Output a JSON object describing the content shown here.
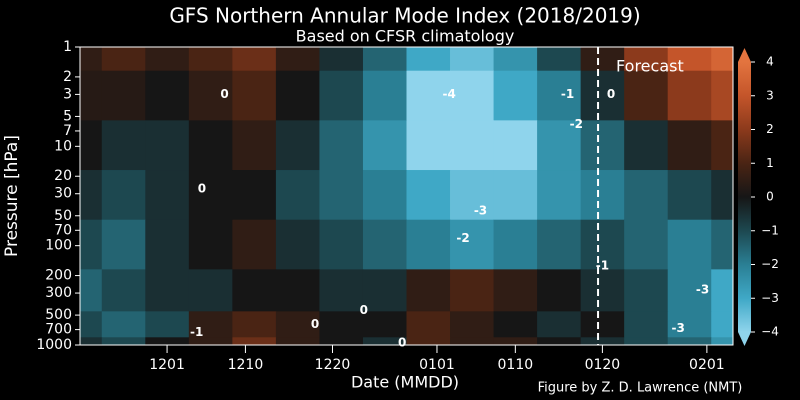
{
  "chart_data": {
    "type": "contour",
    "title": "GFS Northern Annular Mode Index (2018/2019)",
    "subtitle": "Based on CFSR climatology",
    "xlabel": "Date (MMDD)",
    "ylabel": "Pressure [hPa]",
    "credit": "Figure by Z. D. Lawrence (NMT)",
    "xlim": [
      0,
      75
    ],
    "xticks": [
      {
        "value": 10,
        "label": "1201"
      },
      {
        "value": 19,
        "label": "1210"
      },
      {
        "value": 29,
        "label": "1220"
      },
      {
        "value": 41,
        "label": "0101"
      },
      {
        "value": 50,
        "label": "0110"
      },
      {
        "value": 60,
        "label": "0120"
      },
      {
        "value": 72,
        "label": "0201"
      }
    ],
    "ylim": [
      1000,
      1
    ],
    "ylog": true,
    "yticks": [
      1,
      2,
      3,
      5,
      7,
      10,
      20,
      30,
      50,
      70,
      100,
      200,
      300,
      500,
      700,
      1000
    ],
    "x": [
      0,
      5,
      10,
      15,
      20,
      25,
      30,
      35,
      40,
      45,
      50,
      55,
      60,
      65,
      70,
      75
    ],
    "levels": [
      1,
      3,
      10,
      30,
      100,
      300,
      700,
      1000
    ],
    "z": [
      [
        0.5,
        1,
        0.5,
        1,
        1.5,
        0.5,
        -0.5,
        -1.5,
        -3,
        -3.5,
        -2.5,
        -1,
        0.5,
        2,
        3,
        3.5
      ],
      [
        0.3,
        0.3,
        0,
        0.5,
        1,
        0,
        -1,
        -2,
        -4,
        -4,
        -3,
        -2,
        -0.5,
        1,
        2,
        2.5
      ],
      [
        0,
        -0.5,
        -0.5,
        0,
        0.5,
        -0.5,
        -1.5,
        -2.5,
        -4,
        -4.5,
        -4,
        -2.5,
        -1.5,
        -0.5,
        0.5,
        1
      ],
      [
        -0.5,
        -1,
        -0.5,
        0,
        0,
        -1,
        -1.5,
        -2,
        -3,
        -3.5,
        -3.5,
        -2.5,
        -2,
        -1.5,
        -1,
        -0.5
      ],
      [
        -1,
        -1.5,
        -0.5,
        0,
        0.5,
        -0.5,
        -1,
        -1.5,
        -2,
        -2.5,
        -2,
        -1.5,
        -1,
        -1.5,
        -2,
        -1.5
      ],
      [
        -1.5,
        -1,
        -0.5,
        -0.5,
        0,
        0,
        -0.5,
        -0.5,
        0.5,
        1,
        0.5,
        0,
        -0.5,
        -1,
        -2,
        -3
      ],
      [
        -1,
        -1.5,
        -1,
        0.5,
        1,
        0.5,
        0,
        0,
        1,
        0.5,
        0,
        -0.5,
        0,
        -1,
        -2,
        -3
      ],
      [
        -0.5,
        -1,
        0,
        0.5,
        1.5,
        0.5,
        0,
        -0.5,
        1,
        0.5,
        0.5,
        0,
        -0.5,
        -1,
        -1.5,
        -2.5
      ]
    ],
    "clim": [
      -4,
      4
    ],
    "cticks": [
      {
        "value": 4,
        "label": "4"
      },
      {
        "value": 3,
        "label": "3"
      },
      {
        "value": 2,
        "label": "2"
      },
      {
        "value": 1,
        "label": "1"
      },
      {
        "value": 0,
        "label": "0"
      },
      {
        "value": -1,
        "label": "−1"
      },
      {
        "value": -2,
        "label": "−2"
      },
      {
        "value": -3,
        "label": "−3"
      },
      {
        "value": -4,
        "label": "−4"
      }
    ],
    "cmap": [
      "#8fd4ec",
      "#3fa8c6",
      "#2a7f94",
      "#1d4850",
      "#161616",
      "#4a2414",
      "#8c3a1c",
      "#c4552a",
      "#e3743f"
    ],
    "contour_labels": [
      {
        "x": 16.6,
        "p": 3,
        "text": "0"
      },
      {
        "x": 42.4,
        "p": 3,
        "text": "-4"
      },
      {
        "x": 56,
        "p": 3,
        "text": "-1"
      },
      {
        "x": 61,
        "p": 3,
        "text": "0"
      },
      {
        "x": 57,
        "p": 6,
        "text": "-2"
      },
      {
        "x": 14,
        "p": 27,
        "text": "0"
      },
      {
        "x": 46,
        "p": 45,
        "text": "-3"
      },
      {
        "x": 44,
        "p": 85,
        "text": "-2"
      },
      {
        "x": 60,
        "p": 160,
        "text": "-1"
      },
      {
        "x": 71.5,
        "p": 280,
        "text": "-3"
      },
      {
        "x": 68.7,
        "p": 680,
        "text": "-3"
      },
      {
        "x": 27,
        "p": 620,
        "text": "0"
      },
      {
        "x": 32.6,
        "p": 450,
        "text": "0"
      },
      {
        "x": 37,
        "p": 950,
        "text": "0"
      },
      {
        "x": 13.4,
        "p": 750,
        "text": "-1"
      }
    ],
    "forecast": {
      "x": 59.5,
      "label": "Forecast"
    }
  }
}
